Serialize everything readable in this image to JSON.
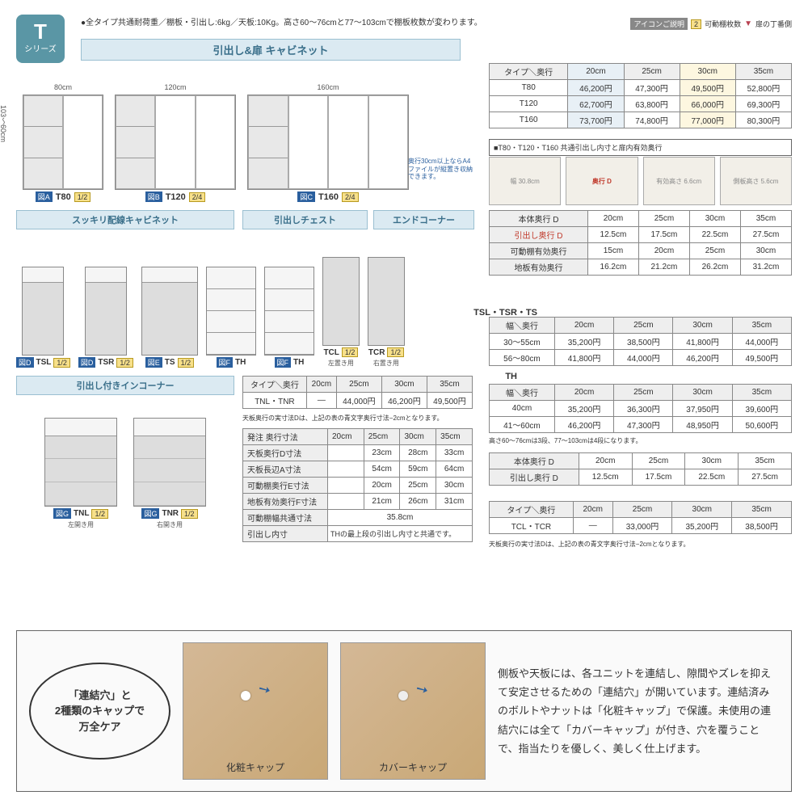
{
  "series": {
    "letter": "T",
    "label": "シリーズ"
  },
  "top_info": "●全タイプ共通耐荷重／棚板・引出し:6kg／天板:10Kg。高さ60～76cmと77～103cmで棚板枚数が変わります。",
  "icon_legend": {
    "title": "アイコンご説明",
    "shelf": "2",
    "shelf_label": "可動棚枚数",
    "hinge": "▼",
    "hinge_label": "扉の丁番側"
  },
  "main_title": "引出し&扉 キャビネット",
  "cabinets": [
    {
      "width": "80cm",
      "zu": "図A",
      "model": "T80",
      "ratio": "1/2"
    },
    {
      "width": "120cm",
      "zu": "図B",
      "model": "T120",
      "ratio": "2/4"
    },
    {
      "width": "160cm",
      "zu": "図C",
      "model": "T160",
      "ratio": "2/4"
    }
  ],
  "height_label": "103〜60cm",
  "a4_note": "奥行30cm以上ならA4ファイルが縦置き収納できます。",
  "price_table": {
    "headers": [
      "タイプ＼奥行",
      "20cm",
      "25cm",
      "30cm",
      "35cm"
    ],
    "rows": [
      {
        "type": "T80",
        "p": [
          "46,200円",
          "47,300円",
          "49,500円",
          "52,800円"
        ]
      },
      {
        "type": "T120",
        "p": [
          "62,700円",
          "63,800円",
          "66,000円",
          "69,300円"
        ]
      },
      {
        "type": "T160",
        "p": [
          "73,700円",
          "74,800円",
          "77,000円",
          "80,300円"
        ]
      }
    ]
  },
  "detail_note": "■T80・T120・T160 共通引出し内寸と扉内有効奥行",
  "detail_labels": [
    "幅 30.8cm",
    "奥行 D",
    "有効高さ 6.6cm",
    "側板高さ 5.6cm"
  ],
  "depth_table": {
    "rows": [
      {
        "label": "本体奥行 D",
        "v": [
          "20cm",
          "25cm",
          "30cm",
          "35cm"
        ]
      },
      {
        "label": "引出し奥行 D",
        "red": true,
        "v": [
          "12.5cm",
          "17.5cm",
          "22.5cm",
          "27.5cm"
        ]
      },
      {
        "label": "可動棚有効奥行",
        "v": [
          "15cm",
          "20cm",
          "25cm",
          "30cm"
        ]
      },
      {
        "label": "地板有効奥行",
        "v": [
          "16.2cm",
          "21.2cm",
          "26.2cm",
          "31.2cm"
        ]
      }
    ]
  },
  "sec2": {
    "a": "スッキリ配線キャビネット",
    "b": "引出しチェスト",
    "c": "エンドコーナー"
  },
  "row2_dims": {
    "w1": "30～55cm",
    "w2": "56～80cm",
    "d": "20・25・30・35cm",
    "w3": "40・41～60cm"
  },
  "row2_items": [
    {
      "model": "TSL",
      "ratio": "1/2",
      "zu": "図D"
    },
    {
      "model": "TSR",
      "ratio": "1/2",
      "zu": "図D"
    },
    {
      "model": "TS",
      "ratio": "1/2",
      "zu": "図E"
    },
    {
      "model": "TH",
      "zu": "図F",
      "h": "76〜60cm"
    },
    {
      "model": "TH",
      "zu": "図F",
      "h": "103〜77cm"
    },
    {
      "model": "TCL",
      "ratio": "1/2",
      "sub": "左置き用"
    },
    {
      "model": "TCR",
      "ratio": "1/2",
      "sub": "右置き用"
    }
  ],
  "sec3_title": "引出し付きインコーナー",
  "row3_items": [
    {
      "model": "TNL",
      "ratio": "1/2",
      "zu": "図G",
      "sub": "左開き用"
    },
    {
      "model": "TNR",
      "ratio": "1/2",
      "zu": "図G",
      "sub": "右開き用"
    }
  ],
  "tnl_table": {
    "headers": [
      "タイプ＼奥行",
      "20cm",
      "25cm",
      "30cm",
      "35cm"
    ],
    "row": {
      "type": "TNL・TNR",
      "p": [
        "—",
        "44,000円",
        "46,200円",
        "49,500円"
      ]
    }
  },
  "tnl_note": "天板奥行の実寸法Dは、上記の表の青文字奥行寸法−2cmとなります。",
  "spec_table": {
    "headers": [
      "発注 奥行寸法",
      "20cm",
      "25cm",
      "30cm",
      "35cm"
    ],
    "rows": [
      {
        "label": "天板奥行D寸法",
        "v": [
          "",
          "23cm",
          "28cm",
          "33cm"
        ]
      },
      {
        "label": "天板長辺A寸法",
        "v": [
          "",
          "54cm",
          "59cm",
          "64cm"
        ]
      },
      {
        "label": "可動棚奥行E寸法",
        "v": [
          "",
          "20cm",
          "25cm",
          "30cm"
        ]
      },
      {
        "label": "地板有効奥行F寸法",
        "v": [
          "",
          "21cm",
          "26cm",
          "31cm"
        ]
      },
      {
        "label": "可動棚幅共通寸法",
        "v": [
          "35.8cm",
          "",
          "",
          ""
        ],
        "span": 4
      },
      {
        "label": "引出し内寸",
        "note": "THの最上段の引出し内寸と共通です。"
      }
    ]
  },
  "tsl": {
    "title": "TSL・TSR・TS",
    "headers": [
      "幅＼奥行",
      "20cm",
      "25cm",
      "30cm",
      "35cm"
    ],
    "rows": [
      {
        "w": "30～55cm",
        "p": [
          "35,200円",
          "38,500円",
          "41,800円",
          "44,000円"
        ]
      },
      {
        "w": "56～80cm",
        "p": [
          "41,800円",
          "44,000円",
          "46,200円",
          "49,500円"
        ]
      }
    ]
  },
  "th": {
    "title": "TH",
    "headers": [
      "幅＼奥行",
      "20cm",
      "25cm",
      "30cm",
      "35cm"
    ],
    "rows": [
      {
        "w": "40cm",
        "p": [
          "35,200円",
          "36,300円",
          "37,950円",
          "39,600円"
        ]
      },
      {
        "w": "41～60cm",
        "p": [
          "46,200円",
          "47,300円",
          "48,950円",
          "50,600円"
        ]
      }
    ],
    "note": "高さ60～76cmは3段、77～103cmは4段になります。"
  },
  "depth2": {
    "rows": [
      {
        "label": "本体奥行 D",
        "v": [
          "20cm",
          "25cm",
          "30cm",
          "35cm"
        ]
      },
      {
        "label": "引出し奥行 D",
        "red": true,
        "v": [
          "12.5cm",
          "17.5cm",
          "22.5cm",
          "27.5cm"
        ]
      }
    ]
  },
  "tcl": {
    "headers": [
      "タイプ＼奥行",
      "20cm",
      "25cm",
      "30cm",
      "35cm"
    ],
    "row": {
      "type": "TCL・TCR",
      "p": [
        "—",
        "33,000円",
        "35,200円",
        "38,500円"
      ]
    },
    "note": "天板奥行の実寸法Dは、上記の表の青文字奥行寸法−2cmとなります。"
  },
  "bottom": {
    "ellipse": "「連結穴」と\n2種類のキャップで\n万全ケア",
    "photo1": "化粧キャップ",
    "photo2": "カバーキャップ",
    "text": "側板や天板には、各ユニットを連結し、隙間やズレを抑えて安定させるための「連結穴」が開いています。連結済みのボルトやナットは「化粧キャップ」で保護。未使用の連結穴には全て「カバーキャップ」が付き、穴を覆うことで、指当たりを優しく、美しく仕上げます。"
  },
  "colors": {
    "section_bg": "#dbeaf2",
    "section_border": "#9abfd1",
    "section_text": "#3a6f8a",
    "badge": "#5a96a5",
    "zu": "#2a5f9e",
    "ratio_bg": "#f7e08a",
    "ratio_border": "#b89a20",
    "hl30": "#fdf7e0",
    "hl20": "#e8f0f6",
    "red": "#c0392b"
  }
}
